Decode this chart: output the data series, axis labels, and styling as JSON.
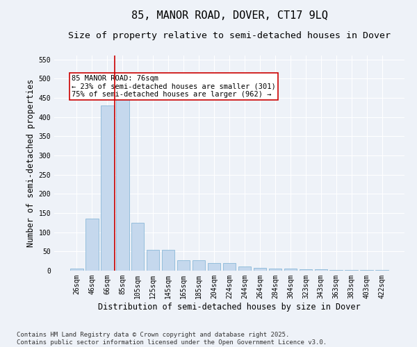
{
  "title": "85, MANOR ROAD, DOVER, CT17 9LQ",
  "subtitle": "Size of property relative to semi-detached houses in Dover",
  "xlabel": "Distribution of semi-detached houses by size in Dover",
  "ylabel": "Number of semi-detached properties",
  "categories": [
    "26sqm",
    "46sqm",
    "66sqm",
    "85sqm",
    "105sqm",
    "125sqm",
    "145sqm",
    "165sqm",
    "185sqm",
    "204sqm",
    "224sqm",
    "244sqm",
    "264sqm",
    "284sqm",
    "304sqm",
    "323sqm",
    "343sqm",
    "363sqm",
    "383sqm",
    "403sqm",
    "422sqm"
  ],
  "values": [
    5,
    135,
    430,
    450,
    125,
    55,
    55,
    28,
    28,
    20,
    20,
    10,
    8,
    5,
    5,
    4,
    3,
    2,
    1,
    1,
    1
  ],
  "bar_color": "#c5d8ed",
  "bar_edge_color": "#8ab8d8",
  "vline_color": "#cc0000",
  "vline_x": 2.5,
  "annotation_text": "85 MANOR ROAD: 76sqm\n← 23% of semi-detached houses are smaller (301)\n75% of semi-detached houses are larger (962) →",
  "annotation_box_facecolor": "#ffffff",
  "annotation_box_edgecolor": "#cc0000",
  "ylim": [
    0,
    560
  ],
  "yticks": [
    0,
    50,
    100,
    150,
    200,
    250,
    300,
    350,
    400,
    450,
    500,
    550
  ],
  "footer1": "Contains HM Land Registry data © Crown copyright and database right 2025.",
  "footer2": "Contains public sector information licensed under the Open Government Licence v3.0.",
  "background_color": "#eef2f8",
  "grid_color": "#ffffff",
  "title_fontsize": 11,
  "subtitle_fontsize": 9.5,
  "tick_fontsize": 7,
  "label_fontsize": 8.5,
  "annotation_fontsize": 7.5,
  "footer_fontsize": 6.5
}
